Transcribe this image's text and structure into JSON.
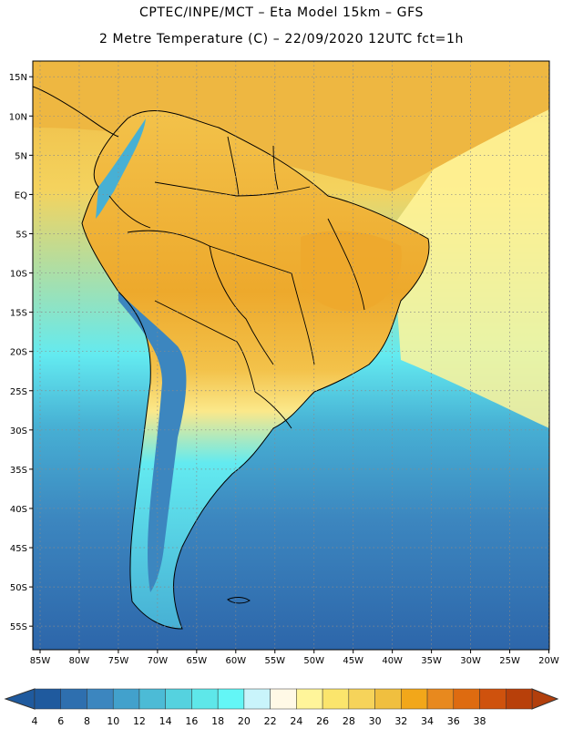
{
  "title": {
    "line1": "CPTEC/INPE/MCT  –  Eta Model 15km  –  GFS",
    "line2": "2 Metre Temperature (C)  –  22/09/2020  12UTC  fct=1h"
  },
  "axes": {
    "lat_labels": [
      "15N",
      "10N",
      "5N",
      "EQ",
      "5S",
      "10S",
      "15S",
      "20S",
      "25S",
      "30S",
      "35S",
      "40S",
      "45S",
      "50S",
      "55S"
    ],
    "lon_labels": [
      "85W",
      "80W",
      "75W",
      "70W",
      "65W",
      "60W",
      "55W",
      "50W",
      "45W",
      "40W",
      "35W",
      "30W",
      "25W",
      "20W"
    ]
  },
  "legend": {
    "values": [
      "4",
      "6",
      "8",
      "10",
      "12",
      "14",
      "16",
      "18",
      "20",
      "22",
      "24",
      "26",
      "28",
      "30",
      "32",
      "34",
      "36",
      "38"
    ],
    "colors": [
      "#1f5a9e",
      "#2e6faf",
      "#3c86bf",
      "#42a1cc",
      "#4cbbd6",
      "#55d2df",
      "#5ee7e9",
      "#63f6f6",
      "#c9f4fb",
      "#fff9e6",
      "#fff59a",
      "#fbe56c",
      "#f6d35a",
      "#f0bf3f",
      "#f2a71a",
      "#e8891e",
      "#de6b10",
      "#cf520d",
      "#b8400a"
    ],
    "under_color": "#1f5a9e",
    "over_color": "#b23f0c"
  },
  "map_palette": {
    "ocean_cold": "#2d66aa",
    "ocean_mid": "#3c86bf",
    "ocean_cool": "#47b0d4",
    "ocean_mild": "#63eaf0",
    "ocean_warm": "#fff59a",
    "ocean_hot": "#f4d35e",
    "caribbean": "#eeb741",
    "land_hot": "#eda92c",
    "land_warm": "#f3c24a",
    "land_mild": "#fbe88a",
    "andes": "#3c86bf",
    "coast_line": "#000000"
  }
}
